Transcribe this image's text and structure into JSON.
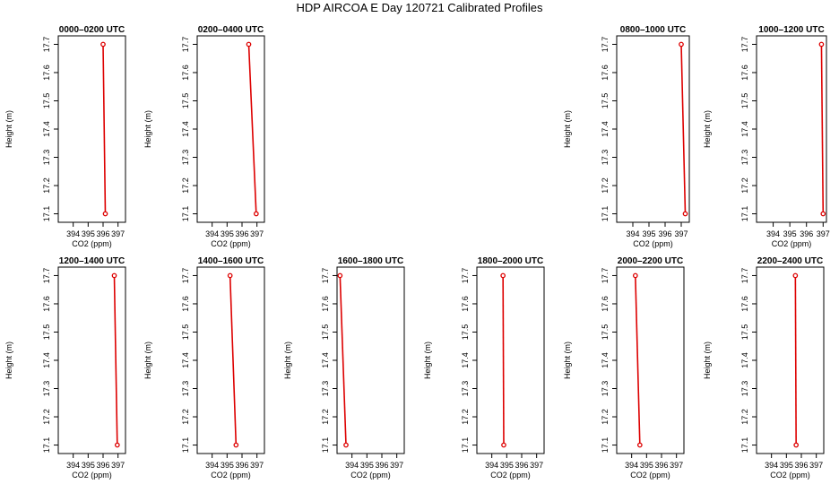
{
  "title": "HDP AIRCOA E   Day 120721   Calibrated Profiles",
  "chart_data": [
    {
      "type": "line",
      "title": "0000–0200 UTC",
      "xlabel": "CO2 (ppm)",
      "ylabel": "Height (m)",
      "xlim": [
        393,
        397.5
      ],
      "ylim": [
        17.07,
        17.73
      ],
      "xticks": [
        394,
        395,
        396,
        397
      ],
      "yticks": [
        17.1,
        17.2,
        17.3,
        17.4,
        17.5,
        17.6,
        17.7
      ],
      "x": [
        396.0,
        396.15
      ],
      "y": [
        17.7,
        17.1
      ]
    },
    {
      "type": "line",
      "title": "0200–0400 UTC",
      "xlabel": "CO2 (ppm)",
      "ylabel": "Height (m)",
      "xlim": [
        393,
        397.5
      ],
      "ylim": [
        17.07,
        17.73
      ],
      "xticks": [
        394,
        395,
        396,
        397
      ],
      "yticks": [
        17.1,
        17.2,
        17.3,
        17.4,
        17.5,
        17.6,
        17.7
      ],
      "x": [
        396.45,
        396.95
      ],
      "y": [
        17.7,
        17.1
      ]
    },
    {
      "type": "line",
      "title": "0800–1000 UTC",
      "xlabel": "CO2 (ppm)",
      "ylabel": "Height (m)",
      "xlim": [
        393,
        397.5
      ],
      "ylim": [
        17.07,
        17.73
      ],
      "xticks": [
        394,
        395,
        396,
        397
      ],
      "yticks": [
        17.1,
        17.2,
        17.3,
        17.4,
        17.5,
        17.6,
        17.7
      ],
      "x": [
        397.0,
        397.25
      ],
      "y": [
        17.7,
        17.1
      ]
    },
    {
      "type": "line",
      "title": "1000–1200 UTC",
      "xlabel": "CO2 (ppm)",
      "ylabel": "Height (m)",
      "xlim": [
        393,
        397.2
      ],
      "ylim": [
        17.07,
        17.73
      ],
      "xticks": [
        394,
        395,
        396,
        397
      ],
      "yticks": [
        17.1,
        17.2,
        17.3,
        17.4,
        17.5,
        17.6,
        17.7
      ],
      "x": [
        396.9,
        397.0
      ],
      "y": [
        17.7,
        17.1
      ]
    },
    {
      "type": "line",
      "title": "1200–1400 UTC",
      "xlabel": "CO2 (ppm)",
      "ylabel": "Height (m)",
      "xlim": [
        393,
        397.5
      ],
      "ylim": [
        17.07,
        17.73
      ],
      "xticks": [
        394,
        395,
        396,
        397
      ],
      "yticks": [
        17.1,
        17.2,
        17.3,
        17.4,
        17.5,
        17.6,
        17.7
      ],
      "x": [
        396.75,
        396.95
      ],
      "y": [
        17.7,
        17.1
      ]
    },
    {
      "type": "line",
      "title": "1400–1600 UTC",
      "xlabel": "CO2 (ppm)",
      "ylabel": "Height (m)",
      "xlim": [
        393,
        397.5
      ],
      "ylim": [
        17.07,
        17.73
      ],
      "xticks": [
        394,
        395,
        396,
        397
      ],
      "yticks": [
        17.1,
        17.2,
        17.3,
        17.4,
        17.5,
        17.6,
        17.7
      ],
      "x": [
        395.2,
        395.6
      ],
      "y": [
        17.7,
        17.1
      ]
    },
    {
      "type": "line",
      "title": "1600–1800 UTC",
      "xlabel": "CO2 (ppm)",
      "ylabel": "Height (m)",
      "xlim": [
        393,
        397.5
      ],
      "ylim": [
        17.07,
        17.73
      ],
      "xticks": [
        394,
        395,
        396,
        397
      ],
      "yticks": [
        17.1,
        17.2,
        17.3,
        17.4,
        17.5,
        17.6,
        17.7
      ],
      "x": [
        393.2,
        393.6
      ],
      "y": [
        17.7,
        17.1
      ]
    },
    {
      "type": "line",
      "title": "1800–2000 UTC",
      "xlabel": "CO2 (ppm)",
      "ylabel": "Height (m)",
      "xlim": [
        393,
        397.5
      ],
      "ylim": [
        17.07,
        17.73
      ],
      "xticks": [
        394,
        395,
        396,
        397
      ],
      "yticks": [
        17.1,
        17.2,
        17.3,
        17.4,
        17.5,
        17.6,
        17.7
      ],
      "x": [
        394.75,
        394.8
      ],
      "y": [
        17.7,
        17.1
      ]
    },
    {
      "type": "line",
      "title": "2000–2200 UTC",
      "xlabel": "CO2 (ppm)",
      "ylabel": "Height (m)",
      "xlim": [
        393,
        397.5
      ],
      "ylim": [
        17.07,
        17.73
      ],
      "xticks": [
        394,
        395,
        396,
        397
      ],
      "yticks": [
        17.1,
        17.2,
        17.3,
        17.4,
        17.5,
        17.6,
        17.7
      ],
      "x": [
        394.25,
        394.55
      ],
      "y": [
        17.7,
        17.1
      ]
    },
    {
      "type": "line",
      "title": "2200–2400 UTC",
      "xlabel": "CO2 (ppm)",
      "ylabel": "Height (m)",
      "xlim": [
        393,
        397.5
      ],
      "ylim": [
        17.07,
        17.73
      ],
      "xticks": [
        394,
        395,
        396,
        397
      ],
      "yticks": [
        17.1,
        17.2,
        17.3,
        17.4,
        17.5,
        17.6,
        17.7
      ],
      "x": [
        395.6,
        395.65
      ],
      "y": [
        17.7,
        17.1
      ]
    }
  ],
  "colors": {
    "line": "#dd0000",
    "marker": "#dd0000",
    "axis": "#000000"
  }
}
